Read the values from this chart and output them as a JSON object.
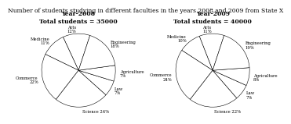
{
  "title": "Number of students studying in different faculties in the years 2008 and 2009 from State X",
  "title_fontsize": 5.5,
  "pie1_title": "Year-2008\nTotal students = 35000",
  "pie2_title": "Year-2009\nTotal students = 40000",
  "pie1_labels": [
    "Arts\n12%",
    "Medicine\n11%",
    "Commerce\n22%",
    "Science 24%",
    "Law\n7%",
    "Agriculture\n7%",
    "Engineering\n18%"
  ],
  "pie1_sizes": [
    12,
    11,
    22,
    24,
    7,
    7,
    18
  ],
  "pie1_startangle": 72,
  "pie2_labels": [
    "Arts\n11%",
    "Medicine\n10%",
    "Commerce\n24%",
    "Science 22%",
    "Law\n7%",
    "Agriculture\n8%",
    "Engineering\n19%"
  ],
  "pie2_sizes": [
    11,
    10,
    24,
    22,
    7,
    8,
    19
  ],
  "pie2_startangle": 72,
  "wedge_color": "#ffffff",
  "wedge_edgecolor": "#000000",
  "label_fontsize": 3.8,
  "subtitle_fontsize": 5.5
}
